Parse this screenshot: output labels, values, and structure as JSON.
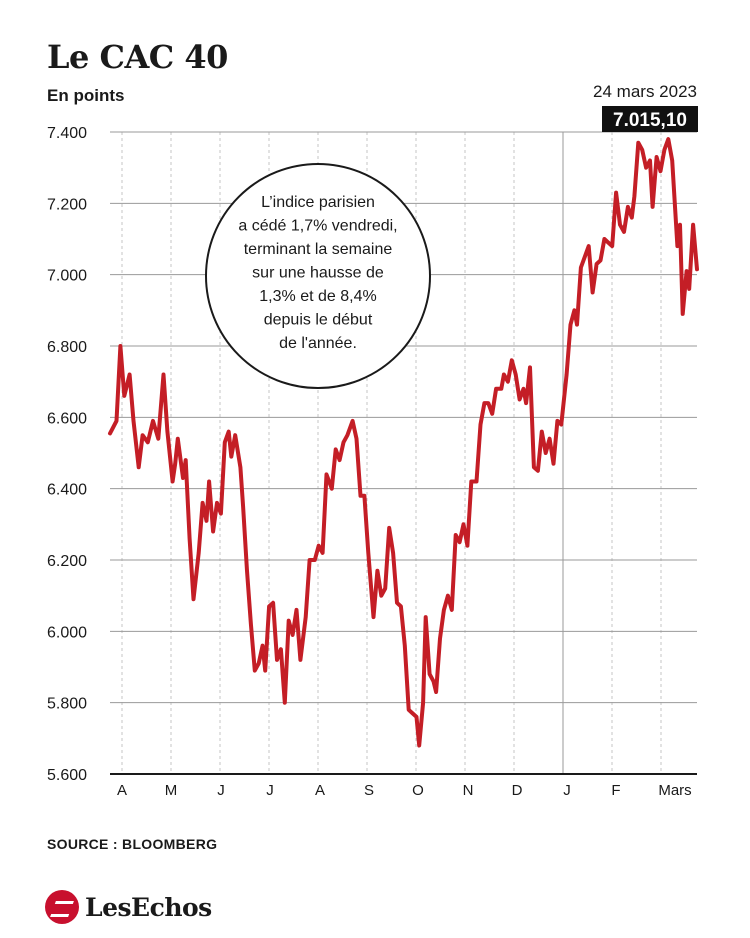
{
  "header": {
    "title": "Le CAC 40",
    "subtitle": "En points"
  },
  "footer": {
    "source": "SOURCE : BLOOMBERG",
    "brand": "LesEchos"
  },
  "colors": {
    "line": "#c41e26",
    "grid": "#9a9a9a",
    "gridMinor": "#c4c4c4",
    "label_bg": "#111111"
  },
  "chart_data": {
    "type": "line",
    "ylim": [
      5600,
      7400
    ],
    "yticks": [
      "7.400",
      "7.200",
      "7.000",
      "6.800",
      "6.600",
      "6.400",
      "6.200",
      "6.000",
      "5.800",
      "5.600"
    ],
    "yticks_values": [
      7400,
      7200,
      7000,
      6800,
      6600,
      6400,
      6200,
      6000,
      5800,
      5600
    ],
    "xticks": [
      "A",
      "M",
      "J",
      "J",
      "A",
      "S",
      "O",
      "N",
      "D",
      "J",
      "F",
      "Mars"
    ],
    "last_date": "24 mars 2023",
    "last_value_label": "7.015,10",
    "annotation": [
      "L’indice parisien",
      "a cédé 1,7% vendredi,",
      "terminant la semaine",
      "sur une hausse de",
      "1,3% et de 8,4%",
      "depuis le début",
      "de l'année."
    ],
    "grid": true,
    "series": [
      {
        "points": [
          [
            0.0,
            6555
          ],
          [
            0.1,
            6590
          ],
          [
            0.16,
            6800
          ],
          [
            0.22,
            6660
          ],
          [
            0.3,
            6720
          ],
          [
            0.36,
            6590
          ],
          [
            0.44,
            6460
          ],
          [
            0.5,
            6550
          ],
          [
            0.58,
            6530
          ],
          [
            0.66,
            6590
          ],
          [
            0.74,
            6540
          ],
          [
            0.82,
            6720
          ],
          [
            0.88,
            6560
          ],
          [
            0.96,
            6420
          ],
          [
            1.0,
            6470
          ],
          [
            1.04,
            6540
          ],
          [
            1.12,
            6430
          ],
          [
            1.16,
            6480
          ],
          [
            1.22,
            6260
          ],
          [
            1.28,
            6090
          ],
          [
            1.36,
            6220
          ],
          [
            1.42,
            6360
          ],
          [
            1.48,
            6310
          ],
          [
            1.52,
            6420
          ],
          [
            1.58,
            6280
          ],
          [
            1.64,
            6360
          ],
          [
            1.7,
            6330
          ],
          [
            1.76,
            6530
          ],
          [
            1.82,
            6560
          ],
          [
            1.86,
            6490
          ],
          [
            1.92,
            6550
          ],
          [
            2.0,
            6460
          ],
          [
            2.04,
            6350
          ],
          [
            2.1,
            6170
          ],
          [
            2.16,
            6020
          ],
          [
            2.22,
            5890
          ],
          [
            2.28,
            5910
          ],
          [
            2.34,
            5960
          ],
          [
            2.38,
            5890
          ],
          [
            2.44,
            6070
          ],
          [
            2.5,
            6080
          ],
          [
            2.56,
            5920
          ],
          [
            2.62,
            5950
          ],
          [
            2.68,
            5800
          ],
          [
            2.74,
            6030
          ],
          [
            2.8,
            5990
          ],
          [
            2.86,
            6060
          ],
          [
            2.92,
            5920
          ],
          [
            3.0,
            6040
          ],
          [
            3.06,
            6200
          ],
          [
            3.14,
            6200
          ],
          [
            3.2,
            6240
          ],
          [
            3.26,
            6220
          ],
          [
            3.32,
            6440
          ],
          [
            3.4,
            6400
          ],
          [
            3.46,
            6510
          ],
          [
            3.52,
            6480
          ],
          [
            3.58,
            6530
          ],
          [
            3.64,
            6550
          ],
          [
            3.72,
            6590
          ],
          [
            3.78,
            6540
          ],
          [
            3.84,
            6380
          ],
          [
            3.9,
            6380
          ],
          [
            3.96,
            6220
          ],
          [
            4.0,
            6130
          ],
          [
            4.04,
            6040
          ],
          [
            4.1,
            6170
          ],
          [
            4.16,
            6100
          ],
          [
            4.22,
            6120
          ],
          [
            4.28,
            6290
          ],
          [
            4.34,
            6220
          ],
          [
            4.4,
            6080
          ],
          [
            4.46,
            6070
          ],
          [
            4.52,
            5960
          ],
          [
            4.58,
            5780
          ],
          [
            4.64,
            5770
          ],
          [
            4.7,
            5760
          ],
          [
            4.74,
            5680
          ],
          [
            4.8,
            5800
          ],
          [
            4.84,
            6040
          ],
          [
            4.9,
            5880
          ],
          [
            4.96,
            5860
          ],
          [
            5.0,
            5830
          ],
          [
            5.06,
            5980
          ],
          [
            5.12,
            6060
          ],
          [
            5.18,
            6100
          ],
          [
            5.24,
            6060
          ],
          [
            5.3,
            6270
          ],
          [
            5.36,
            6250
          ],
          [
            5.42,
            6300
          ],
          [
            5.48,
            6240
          ],
          [
            5.54,
            6420
          ],
          [
            5.62,
            6420
          ],
          [
            5.68,
            6580
          ],
          [
            5.74,
            6640
          ],
          [
            5.8,
            6640
          ],
          [
            5.86,
            6610
          ],
          [
            5.92,
            6680
          ],
          [
            6.0,
            6680
          ],
          [
            6.04,
            6720
          ],
          [
            6.1,
            6700
          ],
          [
            6.16,
            6760
          ],
          [
            6.22,
            6720
          ],
          [
            6.28,
            6650
          ],
          [
            6.34,
            6680
          ],
          [
            6.38,
            6640
          ],
          [
            6.44,
            6740
          ],
          [
            6.5,
            6460
          ],
          [
            6.56,
            6450
          ],
          [
            6.62,
            6560
          ],
          [
            6.68,
            6500
          ],
          [
            6.74,
            6540
          ],
          [
            6.8,
            6470
          ],
          [
            6.86,
            6590
          ],
          [
            6.92,
            6580
          ],
          [
            7.0,
            6720
          ],
          [
            7.06,
            6860
          ],
          [
            7.12,
            6900
          ],
          [
            7.16,
            6860
          ],
          [
            7.22,
            7020
          ],
          [
            7.28,
            7050
          ],
          [
            7.34,
            7080
          ],
          [
            7.4,
            6950
          ],
          [
            7.46,
            7030
          ],
          [
            7.52,
            7040
          ],
          [
            7.58,
            7100
          ],
          [
            7.64,
            7090
          ],
          [
            7.7,
            7080
          ],
          [
            7.76,
            7230
          ],
          [
            7.82,
            7140
          ],
          [
            7.88,
            7120
          ],
          [
            7.94,
            7190
          ],
          [
            8.0,
            7160
          ],
          [
            8.04,
            7220
          ],
          [
            8.1,
            7370
          ],
          [
            8.16,
            7350
          ],
          [
            8.22,
            7300
          ],
          [
            8.28,
            7320
          ],
          [
            8.32,
            7190
          ],
          [
            8.38,
            7330
          ],
          [
            8.44,
            7290
          ],
          [
            8.5,
            7350
          ],
          [
            8.56,
            7380
          ],
          [
            8.62,
            7320
          ],
          [
            8.7,
            7080
          ],
          [
            8.74,
            7140
          ],
          [
            8.78,
            6890
          ],
          [
            8.84,
            7010
          ],
          [
            8.88,
            6960
          ],
          [
            8.94,
            7140
          ],
          [
            9.0,
            7015
          ]
        ]
      }
    ]
  }
}
